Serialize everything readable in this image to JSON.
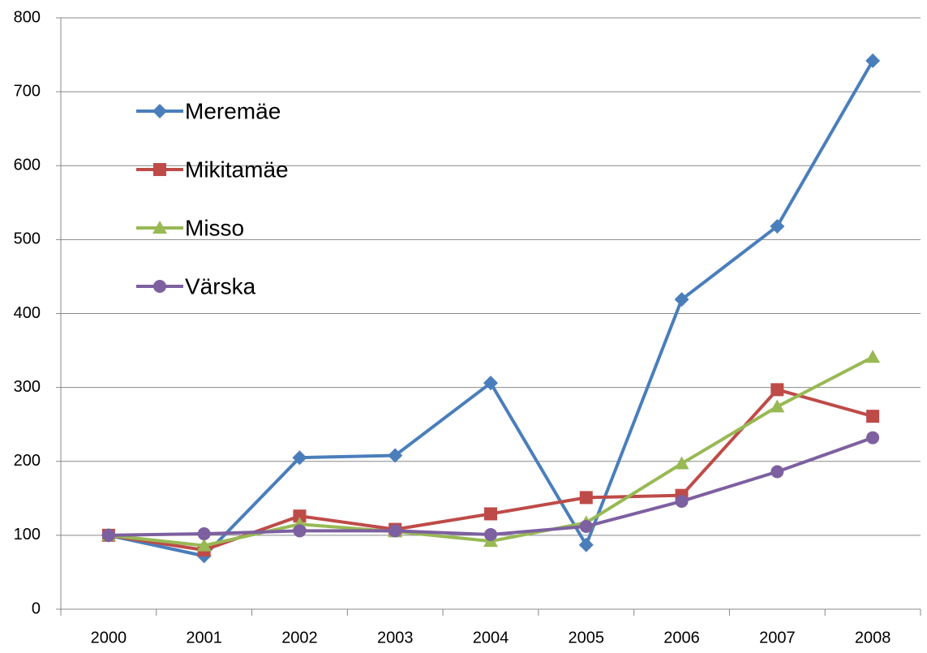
{
  "chart_data": {
    "type": "line",
    "categories": [
      "2000",
      "2001",
      "2002",
      "2003",
      "2004",
      "2005",
      "2006",
      "2007",
      "2008"
    ],
    "series": [
      {
        "name": "Meremäe",
        "color": "#4a7ebb",
        "marker": "diamond",
        "values": [
          100,
          72,
          205,
          208,
          306,
          87,
          419,
          518,
          742
        ]
      },
      {
        "name": "Mikitamäe",
        "color": "#be4b48",
        "marker": "square",
        "values": [
          100,
          80,
          126,
          108,
          129,
          151,
          154,
          297,
          261
        ]
      },
      {
        "name": "Misso",
        "color": "#98b954",
        "marker": "triangle",
        "values": [
          100,
          86,
          115,
          105,
          92,
          117,
          197,
          274,
          341
        ]
      },
      {
        "name": "Värska",
        "color": "#7d60a0",
        "marker": "circle",
        "values": [
          100,
          102,
          106,
          106,
          101,
          112,
          146,
          186,
          232
        ]
      }
    ],
    "ylim": [
      0,
      800
    ],
    "yticks": [
      0,
      100,
      200,
      300,
      400,
      500,
      600,
      700,
      800
    ],
    "grid": true,
    "legend": "upper left"
  }
}
